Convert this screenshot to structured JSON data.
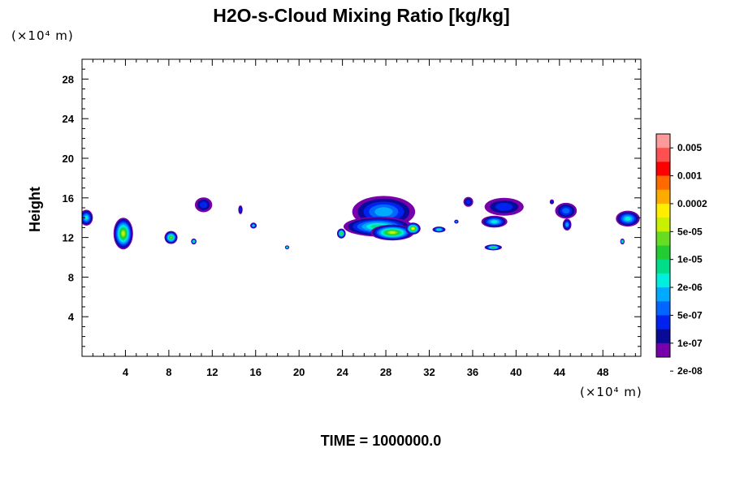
{
  "chart_data": {
    "type": "contour",
    "title": "H2O-s-Cloud Mixing Ratio [kg/kg]",
    "ylabel": "Height",
    "x_unit": "(×10⁴ m)",
    "y_unit": "(×10⁴ m)",
    "time_label": "TIME = 1000000.0",
    "xlim": [
      0,
      51.5
    ],
    "ylim": [
      0,
      30
    ],
    "x_ticks": [
      4,
      8,
      12,
      16,
      20,
      24,
      28,
      32,
      36,
      40,
      44,
      48
    ],
    "y_ticks": [
      4,
      8,
      12,
      16,
      20,
      24,
      28
    ],
    "colorbar": {
      "labels": [
        "0.005",
        "0.001",
        "0.0002",
        "5e-05",
        "1e-05",
        "2e-06",
        "5e-07",
        "1e-07",
        "2e-08"
      ],
      "colors": [
        "#ff9a9a",
        "#ff5050",
        "#ff0000",
        "#ff6a00",
        "#ffaa00",
        "#ffee00",
        "#c8f000",
        "#66dd22",
        "#22cc33",
        "#00dd88",
        "#00eedd",
        "#00aaff",
        "#0066ff",
        "#0022ee",
        "#0a0a99",
        "#7700aa"
      ]
    },
    "cloud_cells": [
      {
        "x": 0.4,
        "y": 14.0,
        "w": 1.2,
        "h": 1.6,
        "level": 10
      },
      {
        "x": 3.8,
        "y": 12.4,
        "w": 1.8,
        "h": 3.2,
        "level": 6
      },
      {
        "x": 8.2,
        "y": 12.0,
        "w": 1.2,
        "h": 1.3,
        "level": 7
      },
      {
        "x": 10.3,
        "y": 11.6,
        "w": 0.5,
        "h": 0.6,
        "level": 8
      },
      {
        "x": 11.2,
        "y": 15.3,
        "w": 1.6,
        "h": 1.5,
        "level": 13
      },
      {
        "x": 14.6,
        "y": 14.8,
        "w": 0.4,
        "h": 0.9,
        "level": 13
      },
      {
        "x": 15.8,
        "y": 13.2,
        "w": 0.6,
        "h": 0.6,
        "level": 10
      },
      {
        "x": 18.9,
        "y": 11.0,
        "w": 0.4,
        "h": 0.4,
        "level": 8
      },
      {
        "x": 23.9,
        "y": 12.4,
        "w": 0.8,
        "h": 1.0,
        "level": 7
      },
      {
        "x": 27.8,
        "y": 14.6,
        "w": 5.8,
        "h": 3.2,
        "level": 11
      },
      {
        "x": 27.3,
        "y": 13.1,
        "w": 6.4,
        "h": 2.0,
        "level": 9
      },
      {
        "x": 28.6,
        "y": 12.5,
        "w": 4.0,
        "h": 1.6,
        "level": 6
      },
      {
        "x": 30.5,
        "y": 12.9,
        "w": 1.4,
        "h": 1.2,
        "level": 5
      },
      {
        "x": 35.6,
        "y": 15.6,
        "w": 0.9,
        "h": 1.0,
        "level": 13
      },
      {
        "x": 38.9,
        "y": 15.1,
        "w": 3.6,
        "h": 1.8,
        "level": 13
      },
      {
        "x": 38.0,
        "y": 13.6,
        "w": 2.4,
        "h": 1.2,
        "level": 10
      },
      {
        "x": 37.9,
        "y": 11.0,
        "w": 1.6,
        "h": 0.6,
        "level": 8
      },
      {
        "x": 44.6,
        "y": 14.7,
        "w": 2.0,
        "h": 1.6,
        "level": 12
      },
      {
        "x": 43.3,
        "y": 15.6,
        "w": 0.4,
        "h": 0.5,
        "level": 13
      },
      {
        "x": 44.7,
        "y": 13.3,
        "w": 0.8,
        "h": 1.2,
        "level": 11
      },
      {
        "x": 50.3,
        "y": 13.9,
        "w": 2.2,
        "h": 1.6,
        "level": 10
      },
      {
        "x": 49.8,
        "y": 11.6,
        "w": 0.4,
        "h": 0.6,
        "level": 8
      },
      {
        "x": 32.9,
        "y": 12.8,
        "w": 1.2,
        "h": 0.6,
        "level": 9
      },
      {
        "x": 34.5,
        "y": 13.6,
        "w": 0.4,
        "h": 0.4,
        "level": 11
      }
    ]
  }
}
